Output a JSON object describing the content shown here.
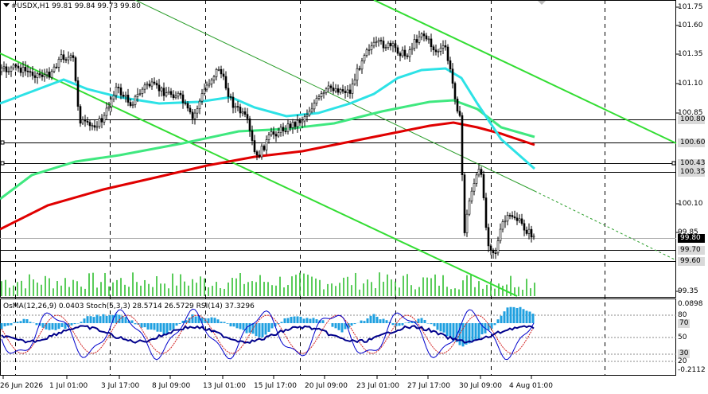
{
  "header": {
    "symbol_line": "#USDX,H1  99.81 99.84 99.73 99.80"
  },
  "indicators": {
    "osma": "OsMA(12,26,9) 0.0403",
    "stoch": "Stoch(5,3,3) 28.5714 26.5729",
    "rsi": "RSI(14) 37.3296"
  },
  "price_axis": {
    "labels": [
      "101.75",
      "101.60",
      "101.35",
      "101.10",
      "100.85",
      "100.10",
      "99.85",
      "99.35"
    ]
  },
  "price_tags": {
    "l1": "100.80",
    "l2": "100.60",
    "l3": "100.43",
    "l4": "100.35",
    "bid": "99.80",
    "s1": "99.70",
    "s2": "99.60"
  },
  "indicator_axis": {
    "max": "0.0898",
    "l80": "80",
    "l70": "70",
    "l50": "50",
    "l30": "30",
    "l20": "20",
    "min": "-0.2112"
  },
  "time_axis": {
    "labels": [
      "26 Jun 2026",
      "1 Jul 01:00",
      "3 Jul 17:00",
      "8 Jul 09:00",
      "13 Jul 01:00",
      "15 Jul 17:00",
      "20 Jul 09:00",
      "23 Jul 01:00",
      "27 Jul 17:00",
      "30 Jul 09:00",
      "4 Aug 01:00"
    ]
  },
  "colors": {
    "ema_fast": "#2de2e6",
    "ema_mid": "#3fe87f",
    "ema_slow": "#e00000",
    "channel": "#33dd33",
    "candles": "#000000",
    "histogram": "#1fa0e0",
    "stoch_main": "#0000cc",
    "stoch_signal": "#d22222",
    "rsi": "#00008b",
    "volume": "#22bb22"
  }
}
